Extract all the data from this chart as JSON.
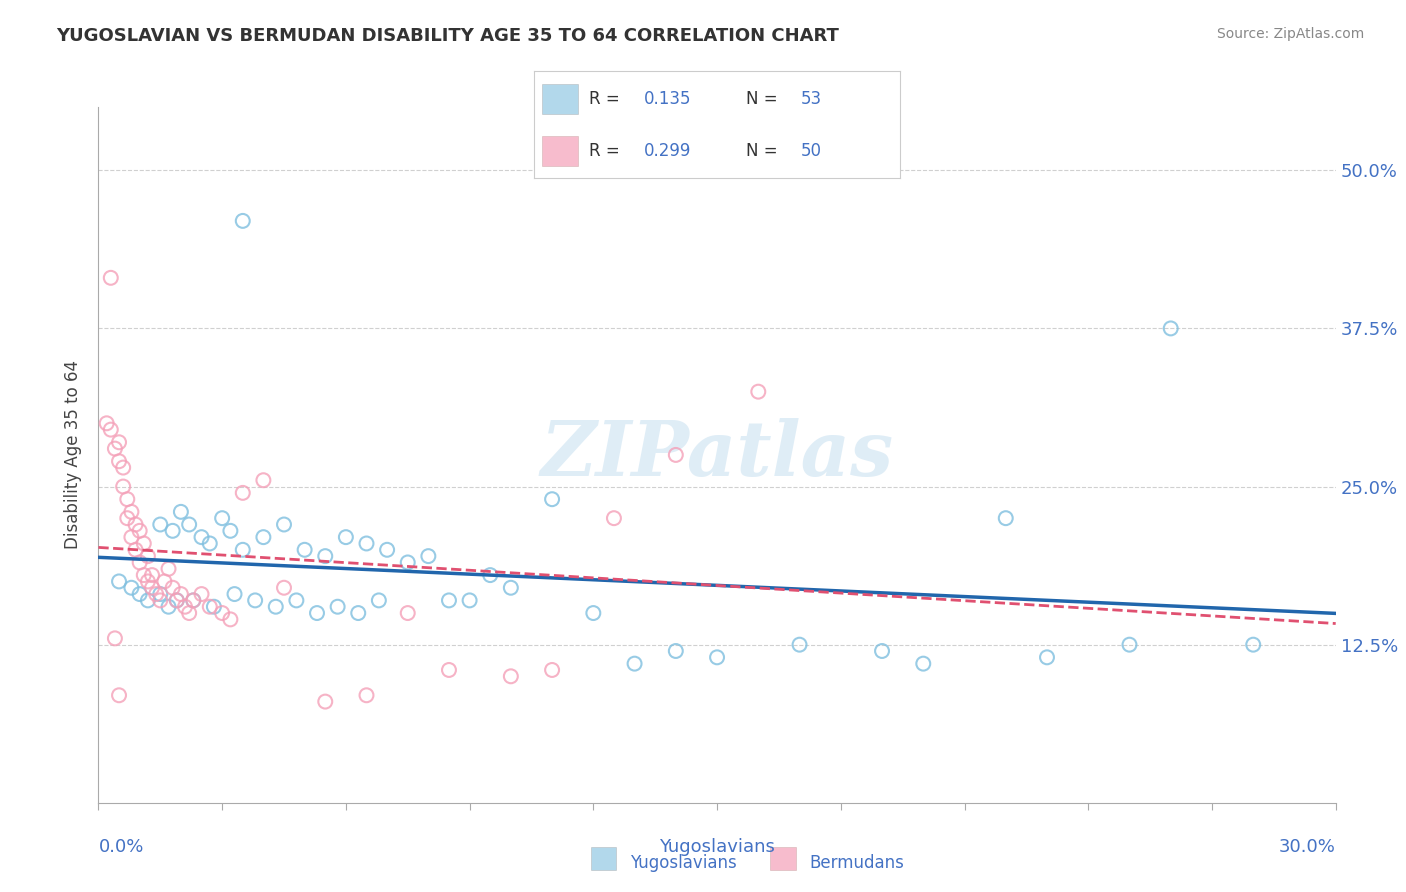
{
  "title": "YUGOSLAVIAN VS BERMUDAN DISABILITY AGE 35 TO 64 CORRELATION CHART",
  "source": "Source: ZipAtlas.com",
  "xlabel_bottom": "Yugoslavians",
  "ylabel": "Disability Age 35 to 64",
  "xlabel_right": "Bermudans",
  "watermark": "ZIPatlas",
  "background": "#ffffff",
  "grid_color": "#d0d0d0",
  "blue_color": "#7fbfdf",
  "pink_color": "#f4a0b8",
  "blue_line_color": "#2166ac",
  "pink_line_color": "#e05070",
  "legend_r1": "0.135",
  "legend_n1": "53",
  "legend_r2": "0.299",
  "legend_n2": "50",
  "xlim": [
    0.0,
    30.0
  ],
  "ylim": [
    0.0,
    55.0
  ],
  "yticks": [
    12.5,
    25.0,
    37.5,
    50.0
  ],
  "xtick_positions": [
    0,
    3,
    6,
    9,
    12,
    15,
    18,
    21,
    24,
    27,
    30
  ],
  "blue_scatter_x": [
    3.5,
    1.5,
    1.8,
    2.0,
    2.2,
    2.5,
    2.7,
    3.0,
    3.2,
    3.5,
    4.0,
    4.5,
    5.0,
    5.5,
    6.0,
    6.5,
    7.0,
    7.5,
    8.0,
    0.5,
    0.8,
    1.0,
    1.2,
    1.5,
    1.7,
    1.9,
    2.3,
    2.8,
    3.3,
    3.8,
    4.3,
    4.8,
    5.3,
    5.8,
    6.3,
    6.8,
    9.0,
    10.0,
    12.0,
    14.0,
    17.0,
    19.0,
    22.0,
    25.0,
    28.0,
    11.0,
    15.0,
    20.0,
    23.0,
    26.0,
    8.5,
    9.5,
    13.0
  ],
  "blue_scatter_y": [
    46.0,
    22.0,
    21.5,
    23.0,
    22.0,
    21.0,
    20.5,
    22.5,
    21.5,
    20.0,
    21.0,
    22.0,
    20.0,
    19.5,
    21.0,
    20.5,
    20.0,
    19.0,
    19.5,
    17.5,
    17.0,
    16.5,
    16.0,
    16.5,
    15.5,
    16.0,
    16.0,
    15.5,
    16.5,
    16.0,
    15.5,
    16.0,
    15.0,
    15.5,
    15.0,
    16.0,
    16.0,
    17.0,
    15.0,
    12.0,
    12.5,
    12.0,
    22.5,
    12.5,
    12.5,
    24.0,
    11.5,
    11.0,
    11.5,
    37.5,
    16.0,
    18.0,
    11.0
  ],
  "pink_scatter_x": [
    0.2,
    0.3,
    0.4,
    0.5,
    0.5,
    0.6,
    0.6,
    0.7,
    0.7,
    0.8,
    0.8,
    0.9,
    0.9,
    1.0,
    1.0,
    1.1,
    1.1,
    1.2,
    1.2,
    1.3,
    1.3,
    1.4,
    1.5,
    1.6,
    1.7,
    1.8,
    1.9,
    2.0,
    2.1,
    2.2,
    2.3,
    2.5,
    2.7,
    3.0,
    3.2,
    3.5,
    4.0,
    4.5,
    5.5,
    6.5,
    7.5,
    8.5,
    10.0,
    11.0,
    12.5,
    14.0,
    16.0,
    0.4,
    0.5,
    0.3
  ],
  "pink_scatter_y": [
    30.0,
    29.5,
    28.0,
    28.5,
    27.0,
    26.5,
    25.0,
    24.0,
    22.5,
    23.0,
    21.0,
    22.0,
    20.0,
    21.5,
    19.0,
    20.5,
    18.0,
    19.5,
    17.5,
    18.0,
    17.0,
    16.5,
    16.0,
    17.5,
    18.5,
    17.0,
    16.0,
    16.5,
    15.5,
    15.0,
    16.0,
    16.5,
    15.5,
    15.0,
    14.5,
    24.5,
    25.5,
    17.0,
    8.0,
    8.5,
    15.0,
    10.5,
    10.0,
    10.5,
    22.5,
    27.5,
    32.5,
    13.0,
    8.5,
    41.5
  ]
}
